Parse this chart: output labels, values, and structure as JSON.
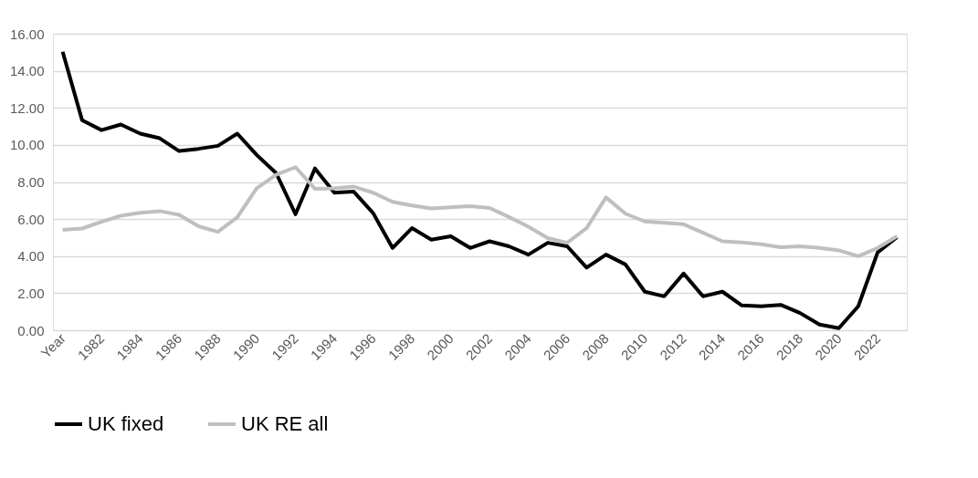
{
  "chart_data": {
    "type": "line",
    "categories": [
      "Year",
      null,
      "1982",
      null,
      "1984",
      null,
      "1986",
      null,
      "1988",
      null,
      "1990",
      null,
      "1992",
      null,
      "1994",
      null,
      "1996",
      null,
      "1998",
      null,
      "2000",
      null,
      "2002",
      null,
      "2004",
      null,
      "2006",
      null,
      "2008",
      null,
      "2010",
      null,
      "2012",
      null,
      "2014",
      null,
      "2016",
      null,
      "2018",
      null,
      "2020",
      null,
      "2022",
      null
    ],
    "series": [
      {
        "name": "UK fixed",
        "color": "#000000",
        "values": [
          15.03,
          11.34,
          10.8,
          11.1,
          10.61,
          10.36,
          9.67,
          9.79,
          9.95,
          10.61,
          9.46,
          8.48,
          6.26,
          8.73,
          7.42,
          7.48,
          6.32,
          4.44,
          5.51,
          4.89,
          5.07,
          4.44,
          4.8,
          4.53,
          4.08,
          4.72,
          4.53,
          3.38,
          4.08,
          3.55,
          2.08,
          1.83,
          3.06,
          1.83,
          2.08,
          1.34,
          1.29,
          1.37,
          0.93,
          0.31,
          0.11,
          1.29,
          4.2,
          5.02
        ]
      },
      {
        "name": "UK RE all",
        "color": "#bfbfbf",
        "values": [
          5.41,
          5.49,
          5.85,
          6.18,
          6.34,
          6.43,
          6.23,
          5.61,
          5.31,
          6.1,
          7.66,
          8.39,
          8.8,
          7.63,
          7.66,
          7.75,
          7.42,
          6.93,
          6.73,
          6.57,
          6.63,
          6.7,
          6.6,
          6.11,
          5.59,
          4.97,
          4.72,
          5.51,
          7.17,
          6.29,
          5.87,
          5.8,
          5.72,
          5.26,
          4.8,
          4.74,
          4.64,
          4.48,
          4.53,
          4.44,
          4.31,
          3.99,
          4.44,
          5.07
        ]
      }
    ],
    "ylim": [
      0,
      16
    ],
    "yticks": [
      {
        "value": 0,
        "label": "0.00"
      },
      {
        "value": 2,
        "label": "2.00"
      },
      {
        "value": 4,
        "label": "4.00"
      },
      {
        "value": 6,
        "label": "6.00"
      },
      {
        "value": 8,
        "label": "8.00"
      },
      {
        "value": 10,
        "label": "10.00"
      },
      {
        "value": 12,
        "label": "12.00"
      },
      {
        "value": 14,
        "label": "14.00"
      },
      {
        "value": 16,
        "label": "16.00"
      }
    ],
    "grid": "y",
    "legend": "bottom",
    "marker": "none",
    "line_style": "solid"
  }
}
